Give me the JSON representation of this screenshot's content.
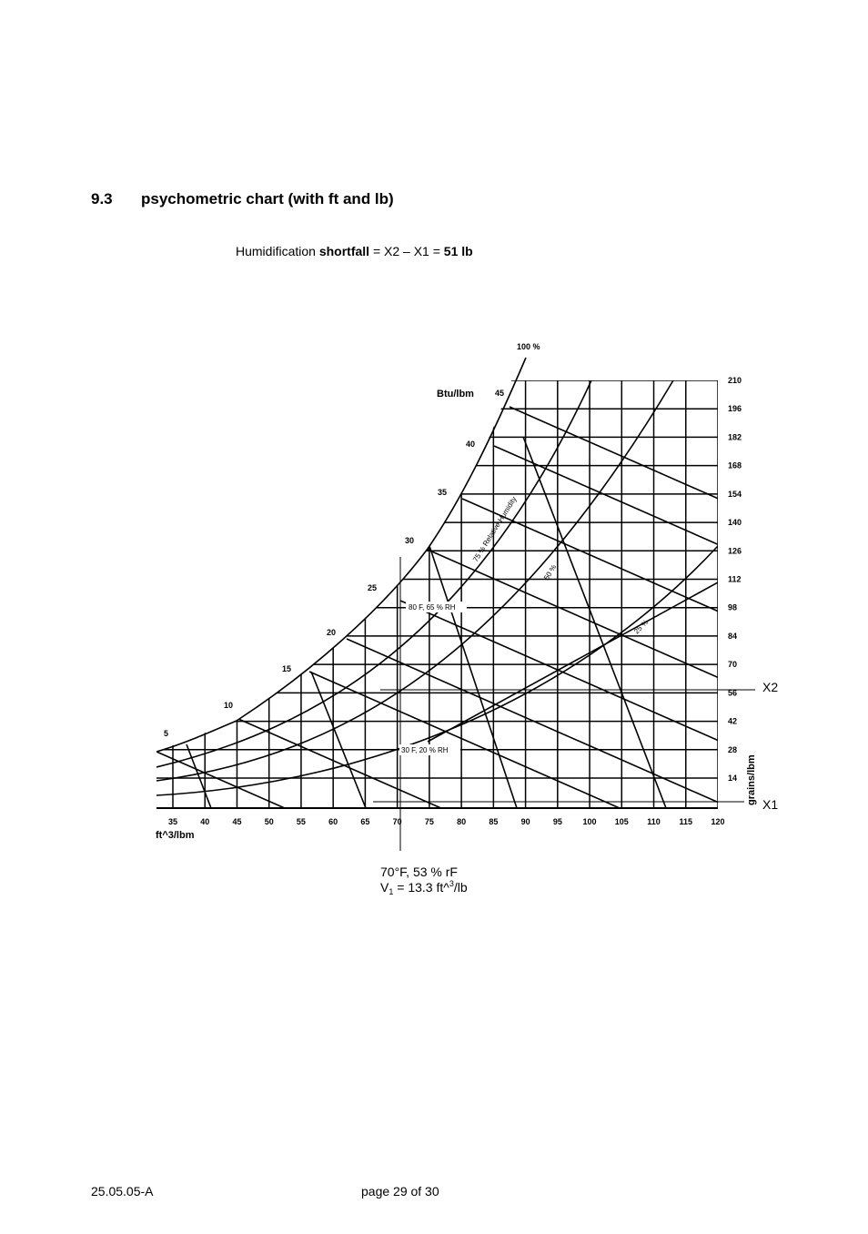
{
  "header": {
    "number": "9.3",
    "title": "psychometric chart (with ft and lb)"
  },
  "intro": {
    "parts": [
      "Humidification ",
      "shortfall",
      " = X2 – X1 = ",
      "51 lb"
    ]
  },
  "figure": {
    "saturation_label": "100 %",
    "enthalpy_unit": "Btu/lbm",
    "enthalpy_ticks": [
      5,
      10,
      15,
      20,
      25,
      30,
      35,
      40,
      45
    ],
    "temperature_ticks": [
      35,
      40,
      45,
      50,
      55,
      60,
      65,
      70,
      75,
      80,
      85,
      90,
      95,
      100,
      105,
      110,
      115,
      120
    ],
    "volume_unit": "ft^3/lbm",
    "grains_ticks": [
      210,
      196,
      182,
      168,
      154,
      140,
      126,
      112,
      98,
      84,
      70,
      56,
      42,
      28,
      14
    ],
    "grains_unit": "grains/lbm",
    "rh_labels": [
      "75 % Relative Humidity",
      "50 %",
      "25 %"
    ],
    "point_labels": [
      "80 F, 65 % RH",
      "30 F, 20 % RH"
    ],
    "markers": [
      "X2",
      "X1"
    ],
    "state": {
      "line1": "70°F, 53 % rF",
      "line2": [
        "V",
        "1",
        " = 13.3 ft^",
        "3",
        "/lb"
      ]
    }
  },
  "footer": {
    "left": "25.05.05-A",
    "center": "page 29 of 30"
  }
}
